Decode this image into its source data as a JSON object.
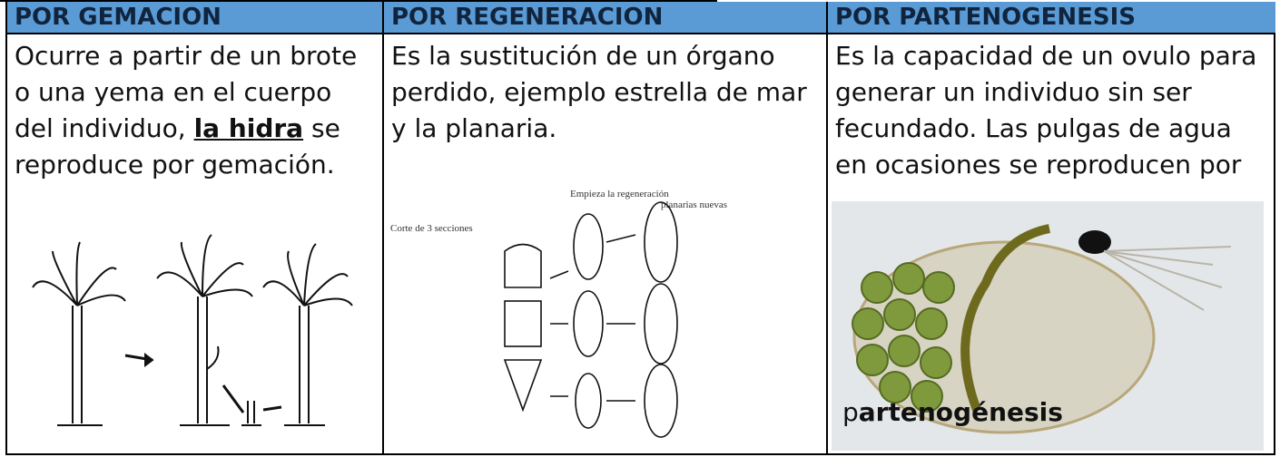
{
  "columns": [
    {
      "header": "POR GEMACION",
      "text": [
        "Ocurre a partir de un brote o una yema en el cuerpo del individuo, ",
        "la hidra",
        " se reproduce por gemación."
      ]
    },
    {
      "header": "POR REGENERACION",
      "text": [
        "Es la sustitución de un órgano perdido, ejemplo estrella de mar y la planaria."
      ],
      "figure_labels": [
        "Empieza la regeneración",
        "planarias nuevas",
        "Corte de 3 secciones"
      ]
    },
    {
      "header": "POR PARTENOGENESIS",
      "text": [
        "Es la capacidad de un ovulo para generar un individuo sin ser fecundado. Las pulgas de agua en ocasiones se reproducen por"
      ],
      "caption": [
        "p",
        "artenogénesis"
      ]
    }
  ]
}
